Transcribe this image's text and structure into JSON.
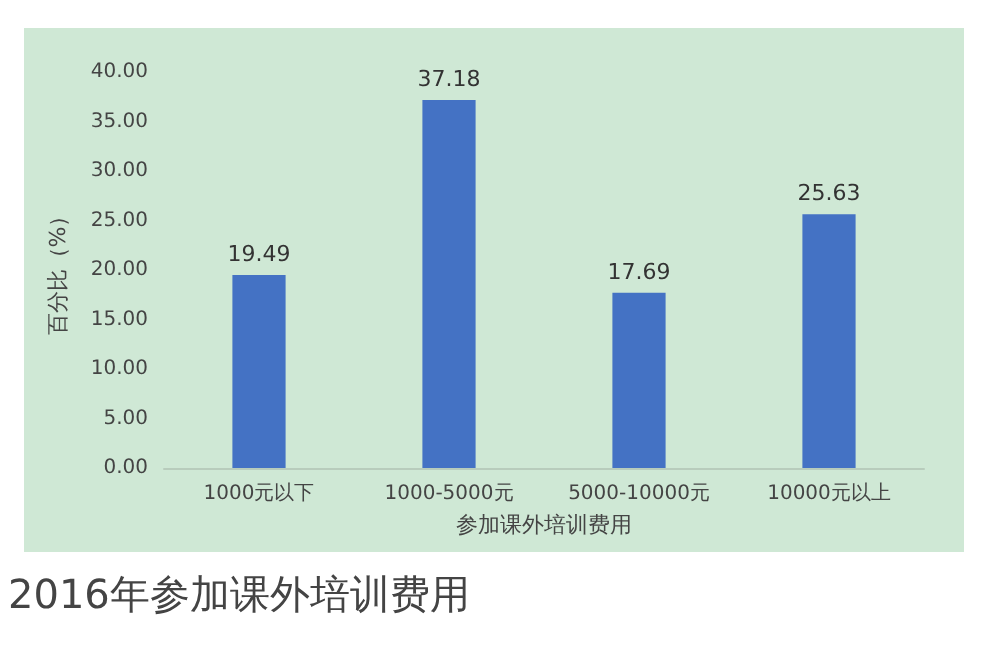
{
  "chart_data": {
    "type": "bar",
    "title": "2016年参加课外培训费用",
    "xlabel": "参加课外培训费用",
    "ylabel": "百分比（%）",
    "categories": [
      "1000元以下",
      "1000-5000元",
      "5000-10000元",
      "10000元以上"
    ],
    "values": [
      19.49,
      37.18,
      17.69,
      25.63
    ],
    "color": "#4472c4",
    "ylim": [
      0,
      40
    ],
    "yticks": [
      {
        "value": 0,
        "label": "0.00"
      },
      {
        "value": 5,
        "label": "5.00"
      },
      {
        "value": 10,
        "label": "10.00"
      },
      {
        "value": 15,
        "label": "15.00"
      },
      {
        "value": 20,
        "label": "20.00"
      },
      {
        "value": 25,
        "label": "25.00"
      },
      {
        "value": 30,
        "label": "30.00"
      },
      {
        "value": 35,
        "label": "35.00"
      },
      {
        "value": 40,
        "label": "40.00"
      }
    ],
    "data_labels": true,
    "grid": false
  }
}
